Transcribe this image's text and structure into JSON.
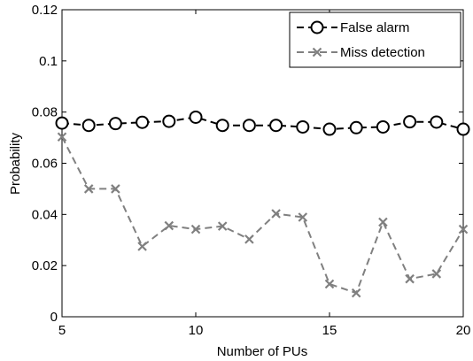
{
  "chart_data": {
    "type": "line",
    "title": "",
    "xlabel": "Number of PUs",
    "ylabel": "Probability",
    "xlim": [
      5,
      20
    ],
    "ylim": [
      0,
      0.12
    ],
    "x_ticks": [
      5,
      10,
      15,
      20
    ],
    "x_tick_labels": [
      "5",
      "10",
      "15",
      "20"
    ],
    "y_ticks": [
      0,
      0.02,
      0.04,
      0.06,
      0.08,
      0.1,
      0.12
    ],
    "y_tick_labels": [
      "0",
      "0.02",
      "0.04",
      "0.06",
      "0.08",
      "0.1",
      "0.12"
    ],
    "grid": false,
    "legend_position": "top-right",
    "x": [
      5,
      6,
      7,
      8,
      9,
      10,
      11,
      12,
      13,
      14,
      15,
      16,
      17,
      18,
      19,
      20
    ],
    "series": [
      {
        "name": "False alarm",
        "color": "#000000",
        "marker": "circle",
        "line_style": "dashed",
        "values": [
          0.0757,
          0.0748,
          0.0755,
          0.076,
          0.0764,
          0.078,
          0.0748,
          0.0748,
          0.0748,
          0.0742,
          0.0733,
          0.0739,
          0.0742,
          0.0762,
          0.0761,
          0.0733
        ]
      },
      {
        "name": "Miss detection",
        "color": "#808080",
        "marker": "x",
        "line_style": "dashed",
        "values": [
          0.0703,
          0.05,
          0.05,
          0.0275,
          0.0356,
          0.0342,
          0.0354,
          0.0303,
          0.0403,
          0.0389,
          0.0128,
          0.0093,
          0.037,
          0.0148,
          0.0168,
          0.0342
        ]
      }
    ]
  }
}
